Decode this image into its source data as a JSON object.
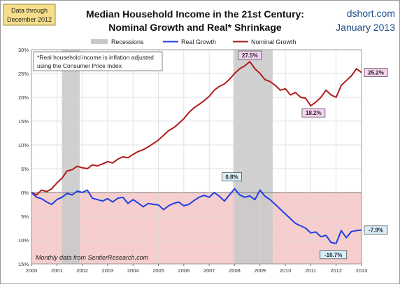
{
  "colors": {
    "nominal": "#b11b1b",
    "real": "#1f3fe0",
    "recession": "#c8c8c8",
    "negative_band": "#f6cece",
    "callout_pink": "#f6d2f0",
    "callout_blue": "#d9eefb",
    "dshort": "#1f4e8c"
  },
  "header": {
    "stamp_line1": "Data through",
    "stamp_line2": "December 2012",
    "title_line1": "Median Household Income in the 21st Century:",
    "title_line2": "Nominal  Growth and Real* Shrinkage",
    "source": "dshort.com",
    "date": "January 2013"
  },
  "legend": {
    "recessions": "Recessions",
    "real": "Real Growth",
    "nominal": "Nominal Growth"
  },
  "footnote_line1": "*Real household  income is inflation adjusted",
  "footnote_line2": "using  the Consumer Price Index",
  "bottom_note": "Monthly data from SentierResearch.com",
  "chart_data": {
    "type": "line",
    "x_unit": "year",
    "xlim": [
      2000,
      2013
    ],
    "ylim": [
      -15,
      30
    ],
    "y_ticks": [
      30,
      25,
      20,
      15,
      10,
      5,
      0,
      -5,
      -10,
      -15
    ],
    "y_tick_labels": [
      "30%",
      "25%",
      "20%",
      "15%",
      "10%",
      "5%",
      "0%",
      "5%",
      "10%",
      "15%"
    ],
    "x_tick_labels": [
      "2000",
      "2001",
      "2002",
      "2003",
      "2004",
      "2005",
      "2006",
      "2007",
      "2008",
      "2009",
      "2010",
      "2011",
      "2012",
      "2013"
    ],
    "recessions": [
      [
        2001.2,
        2001.9
      ],
      [
        2007.95,
        2009.5
      ]
    ],
    "series": [
      {
        "name": "Nominal Growth",
        "color": "#b11b1b",
        "x": [
          2000.0,
          2000.2,
          2000.4,
          2000.6,
          2000.8,
          2001.0,
          2001.2,
          2001.4,
          2001.6,
          2001.8,
          2002.0,
          2002.2,
          2002.4,
          2002.6,
          2002.8,
          2003.0,
          2003.2,
          2003.4,
          2003.6,
          2003.8,
          2004.0,
          2004.2,
          2004.4,
          2004.6,
          2004.8,
          2005.0,
          2005.2,
          2005.4,
          2005.6,
          2005.8,
          2006.0,
          2006.2,
          2006.4,
          2006.6,
          2006.8,
          2007.0,
          2007.2,
          2007.4,
          2007.6,
          2007.8,
          2008.0,
          2008.2,
          2008.4,
          2008.6,
          2008.8,
          2009.0,
          2009.2,
          2009.4,
          2009.6,
          2009.8,
          2010.0,
          2010.2,
          2010.4,
          2010.6,
          2010.8,
          2011.0,
          2011.2,
          2011.4,
          2011.6,
          2011.8,
          2012.0,
          2012.2,
          2012.4,
          2012.6,
          2012.8,
          2013.0
        ],
        "values": [
          0.0,
          -0.5,
          0.5,
          0.2,
          0.8,
          2.0,
          3.0,
          4.5,
          4.8,
          5.5,
          5.2,
          5.0,
          5.8,
          5.6,
          6.0,
          6.5,
          6.2,
          7.0,
          7.5,
          7.3,
          8.0,
          8.6,
          9.0,
          9.6,
          10.3,
          11.0,
          12.0,
          13.0,
          13.6,
          14.5,
          15.5,
          16.8,
          17.8,
          18.5,
          19.3,
          20.2,
          21.5,
          22.3,
          22.8,
          23.8,
          25.0,
          26.0,
          26.6,
          27.5,
          26.0,
          25.0,
          23.7,
          23.3,
          22.5,
          21.5,
          21.8,
          20.5,
          21.0,
          20.0,
          19.8,
          18.2,
          19.0,
          20.0,
          21.5,
          20.5,
          20.0,
          22.5,
          23.5,
          24.5,
          26.0,
          25.2
        ]
      },
      {
        "name": "Real Growth",
        "color": "#1f3fe0",
        "x": [
          2000.0,
          2000.2,
          2000.4,
          2000.6,
          2000.8,
          2001.0,
          2001.2,
          2001.4,
          2001.6,
          2001.8,
          2002.0,
          2002.2,
          2002.4,
          2002.6,
          2002.8,
          2003.0,
          2003.2,
          2003.4,
          2003.6,
          2003.8,
          2004.0,
          2004.2,
          2004.4,
          2004.6,
          2004.8,
          2005.0,
          2005.2,
          2005.4,
          2005.6,
          2005.8,
          2006.0,
          2006.2,
          2006.4,
          2006.6,
          2006.8,
          2007.0,
          2007.2,
          2007.4,
          2007.6,
          2007.8,
          2008.0,
          2008.2,
          2008.4,
          2008.6,
          2008.8,
          2009.0,
          2009.2,
          2009.4,
          2009.6,
          2009.8,
          2010.0,
          2010.2,
          2010.4,
          2010.6,
          2010.8,
          2011.0,
          2011.2,
          2011.4,
          2011.6,
          2011.8,
          2012.0,
          2012.2,
          2012.4,
          2012.6,
          2012.8,
          2013.0
        ],
        "values": [
          0.0,
          -1.0,
          -1.3,
          -2.0,
          -2.5,
          -1.5,
          -1.0,
          -0.2,
          -0.5,
          0.3,
          0.0,
          0.5,
          -1.2,
          -1.5,
          -1.8,
          -1.3,
          -2.0,
          -1.2,
          -1.0,
          -2.3,
          -1.5,
          -2.2,
          -3.0,
          -2.3,
          -2.5,
          -2.6,
          -3.6,
          -2.8,
          -2.3,
          -2.0,
          -2.8,
          -2.5,
          -1.7,
          -1.0,
          -0.6,
          -1.0,
          0.0,
          -0.8,
          -1.8,
          -0.5,
          0.8,
          -0.5,
          -1.0,
          -0.7,
          -1.5,
          0.5,
          -0.8,
          -1.5,
          -2.5,
          -3.5,
          -4.5,
          -5.5,
          -6.5,
          -7.0,
          -7.5,
          -8.5,
          -8.3,
          -9.3,
          -9.0,
          -10.5,
          -10.7,
          -8.0,
          -9.5,
          -8.2,
          -8.0,
          -7.9
        ]
      }
    ],
    "annotations": [
      {
        "label": "27.5%",
        "x": 2008.6,
        "y": 27.5
      },
      {
        "label": "18.2%",
        "x": 2011.0,
        "y": 18.2
      },
      {
        "label": "25.2%",
        "x": 2013.0,
        "y": 25.2
      },
      {
        "label": "0.8%",
        "x": 2008.0,
        "y": 0.8
      },
      {
        "label": "-10.7%",
        "x": 2012.0,
        "y": -10.7
      },
      {
        "label": "-7.9%",
        "x": 2013.0,
        "y": -7.9
      }
    ]
  }
}
